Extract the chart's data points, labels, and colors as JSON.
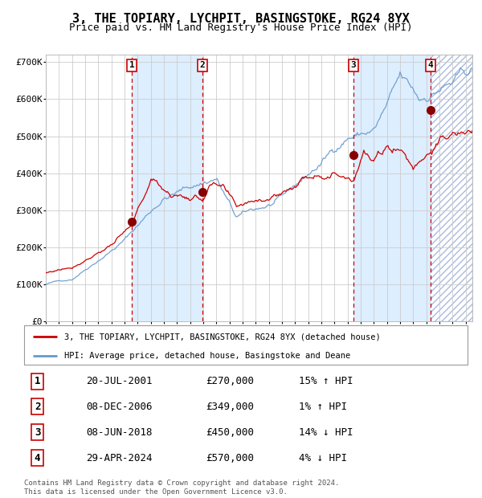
{
  "title": "3, THE TOPIARY, LYCHPIT, BASINGSTOKE, RG24 8YX",
  "subtitle": "Price paid vs. HM Land Registry's House Price Index (HPI)",
  "ylim": [
    0,
    720000
  ],
  "yticks": [
    0,
    100000,
    200000,
    300000,
    400000,
    500000,
    600000,
    700000
  ],
  "ytick_labels": [
    "£0",
    "£100K",
    "£200K",
    "£300K",
    "£400K",
    "£500K",
    "£600K",
    "£700K"
  ],
  "xlim_start": 1995.0,
  "xlim_end": 2027.5,
  "sale_dates": [
    2001.55,
    2006.93,
    2018.44,
    2024.33
  ],
  "sale_prices": [
    270000,
    349000,
    450000,
    570000
  ],
  "sale_labels": [
    "1",
    "2",
    "3",
    "4"
  ],
  "red_line_color": "#cc0000",
  "blue_line_color": "#6699cc",
  "dot_color": "#880000",
  "vline_color": "#cc0000",
  "bg_shaded_color": "#ddeeff",
  "grid_color": "#cccccc",
  "title_fontsize": 11,
  "subtitle_fontsize": 9,
  "legend_entries": [
    "3, THE TOPIARY, LYCHPIT, BASINGSTOKE, RG24 8YX (detached house)",
    "HPI: Average price, detached house, Basingstoke and Deane"
  ],
  "table_rows": [
    [
      "1",
      "20-JUL-2001",
      "£270,000",
      "15% ↑ HPI"
    ],
    [
      "2",
      "08-DEC-2006",
      "£349,000",
      "1% ↑ HPI"
    ],
    [
      "3",
      "08-JUN-2018",
      "£450,000",
      "14% ↓ HPI"
    ],
    [
      "4",
      "29-APR-2024",
      "£570,000",
      "4% ↓ HPI"
    ]
  ],
  "footer": "Contains HM Land Registry data © Crown copyright and database right 2024.\nThis data is licensed under the Open Government Licence v3.0."
}
